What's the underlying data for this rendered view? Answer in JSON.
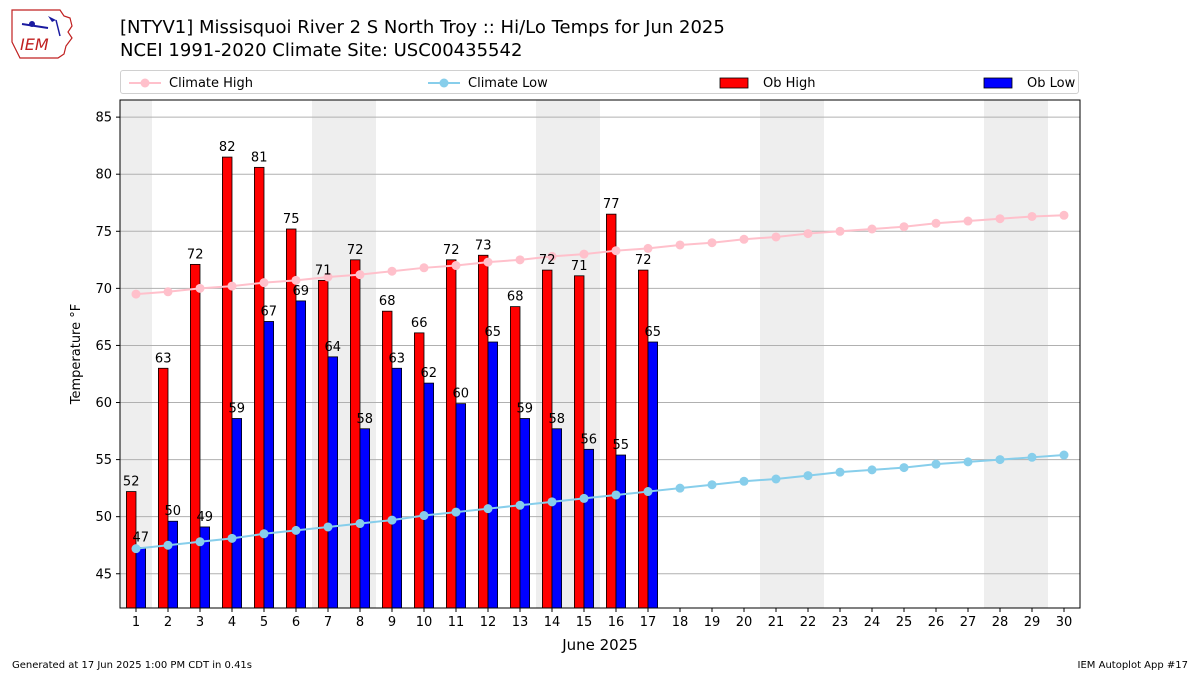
{
  "header": {
    "logo_text": "IEM",
    "title_line1": "[NTYV1] Missisquoi River 2 S North Troy :: Hi/Lo Temps for Jun 2025",
    "title_line2": "NCEI 1991-2020 Climate Site: USC00435542"
  },
  "footer": {
    "generated": "Generated at 17 Jun 2025 1:00 PM CDT in 0.41s",
    "app": "IEM Autoplot App #17"
  },
  "legend": {
    "climate_high": "Climate High",
    "climate_low": "Climate Low",
    "ob_high": "Ob High",
    "ob_low": "Ob Low"
  },
  "chart_data": {
    "type": "bar",
    "xlabel": "June 2025",
    "ylabel": "Temperature °F",
    "ylim": [
      42,
      86.5
    ],
    "xlim": [
      0.5,
      30.5
    ],
    "yticks": [
      45,
      50,
      55,
      60,
      65,
      70,
      75,
      80,
      85
    ],
    "days": [
      1,
      2,
      3,
      4,
      5,
      6,
      7,
      8,
      9,
      10,
      11,
      12,
      13,
      14,
      15,
      16,
      17,
      18,
      19,
      20,
      21,
      22,
      23,
      24,
      25,
      26,
      27,
      28,
      29,
      30
    ],
    "weekend_days": [
      1,
      7,
      8,
      14,
      15,
      21,
      22,
      28,
      29
    ],
    "grid": "horizontal",
    "legend_position": "top",
    "colors": {
      "ob_high": "#ff0000",
      "ob_low": "#0000ff",
      "climate_high": "#ffc0cb",
      "climate_low": "#87ceeb",
      "weekend_band": "#eeeeee",
      "grid": "#b0b0b0"
    },
    "series": [
      {
        "name": "Ob High",
        "kind": "bar",
        "values": [
          52.2,
          63,
          72.1,
          81.5,
          80.6,
          75.2,
          70.7,
          72.5,
          68,
          66.1,
          72.5,
          72.9,
          68.4,
          71.6,
          71.1,
          76.5,
          71.6
        ]
      },
      {
        "name": "Ob Low",
        "kind": "bar",
        "values": [
          47.3,
          49.6,
          49.1,
          58.6,
          67.1,
          68.9,
          64,
          57.7,
          63,
          61.7,
          59.9,
          65.3,
          58.6,
          57.7,
          55.9,
          55.4,
          65.3
        ]
      },
      {
        "name": "Climate High",
        "kind": "line",
        "values": [
          69.5,
          69.7,
          70,
          70.2,
          70.5,
          70.7,
          71,
          71.2,
          71.5,
          71.8,
          72,
          72.3,
          72.5,
          72.8,
          73,
          73.3,
          73.5,
          73.8,
          74,
          74.3,
          74.5,
          74.8,
          75,
          75.2,
          75.4,
          75.7,
          75.9,
          76.1,
          76.3,
          76.4
        ]
      },
      {
        "name": "Climate Low",
        "kind": "line",
        "values": [
          47.2,
          47.5,
          47.8,
          48.1,
          48.5,
          48.8,
          49.1,
          49.4,
          49.7,
          50.1,
          50.4,
          50.7,
          51,
          51.3,
          51.6,
          51.9,
          52.2,
          52.5,
          52.8,
          53.1,
          53.3,
          53.6,
          53.9,
          54.1,
          54.3,
          54.6,
          54.8,
          55,
          55.2,
          55.4
        ]
      }
    ],
    "bar_labels": {
      "high": [
        "52",
        "63",
        "72",
        "82",
        "81",
        "75",
        "71",
        "72",
        "68",
        "66",
        "72",
        "73",
        "68",
        "72",
        "71",
        "77",
        "72"
      ],
      "low": [
        "47",
        "50",
        "49",
        "59",
        "67",
        "69",
        "64",
        "58",
        "63",
        "62",
        "60",
        "65",
        "59",
        "58",
        "56",
        "55",
        "65"
      ]
    }
  }
}
